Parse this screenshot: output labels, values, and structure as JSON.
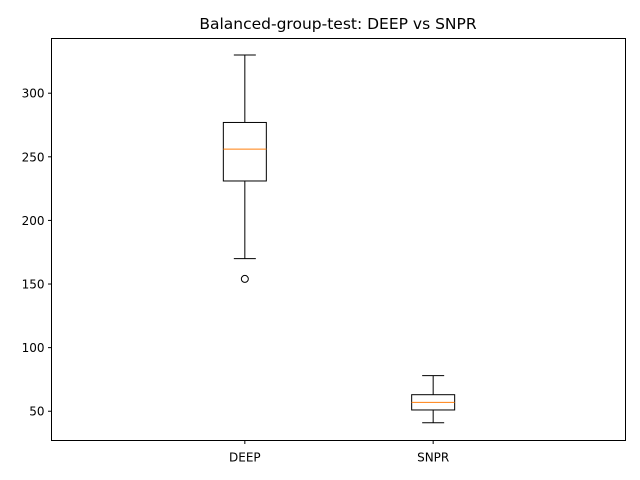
{
  "chart_data": {
    "type": "boxplot",
    "title": "Balanced-group-test: DEEP vs SNPR",
    "xlabel": "",
    "ylabel": "",
    "categories": [
      "DEEP",
      "SNPR"
    ],
    "boxes": [
      {
        "name": "DEEP",
        "whisker_low": 170,
        "q1": 231,
        "median": 256,
        "q3": 277,
        "whisker_high": 330,
        "outliers": [
          154
        ]
      },
      {
        "name": "SNPR",
        "whisker_low": 41,
        "q1": 51,
        "median": 57,
        "q3": 63,
        "whisker_high": 78,
        "outliers": []
      }
    ],
    "ylim": [
      27,
      343
    ],
    "yticks": [
      50,
      100,
      150,
      200,
      250,
      300
    ],
    "grid": false,
    "colors": {
      "box": "#000000",
      "median": "#ff7f0e",
      "outlier": "#000000"
    }
  }
}
